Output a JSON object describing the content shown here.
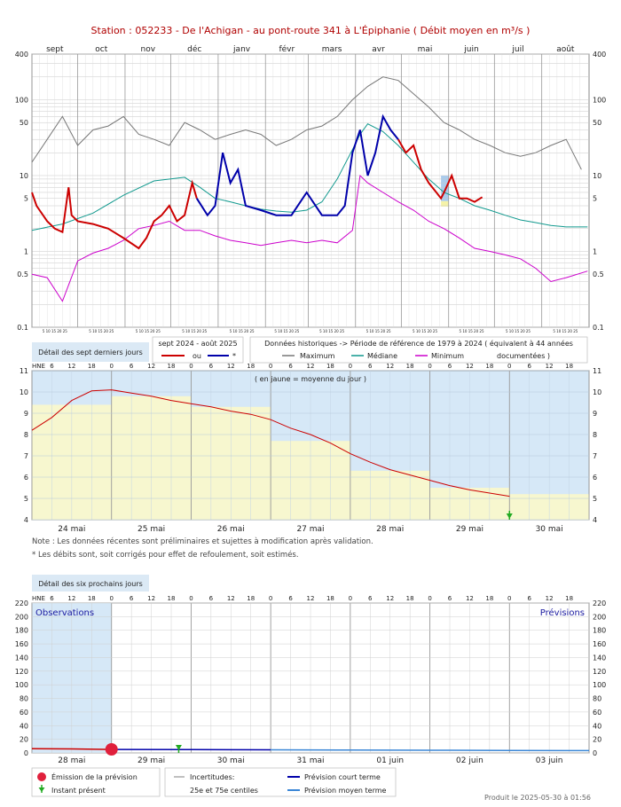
{
  "title": "Station : 052233      -   De l'Achigan - au pont-route 341 à L'Épiphanie   ( Débit moyen en m³/s )",
  "notes": {
    "line1": "Note : Les données récentes sont préliminaires et sujettes à modification après validation.",
    "line2": "* Les débits sont, soit corrigés pour effet de refoulement, soit estimés."
  },
  "produced": "Produit le 2025-05-30 à 01:56",
  "colors": {
    "corrected": "#cc0000",
    "estimated": "#0000aa",
    "maximum": "#777777",
    "median": "#11998e",
    "minimum": "#cc00cc",
    "recent_blue": "#aaccee",
    "daily_yellow": "#f7f7cf",
    "panel_blue": "#d6e8f7",
    "emission": "#e0203c",
    "present": "#22aa22"
  },
  "chart_data": [
    {
      "type": "line",
      "title": "",
      "scale": "log",
      "ylim": [
        0.1,
        400
      ],
      "y_ticks": [
        "0.1",
        "0.5",
        "1",
        "5",
        "10",
        "50",
        "100",
        "400"
      ],
      "months": [
        "sept",
        "oct",
        "nov",
        "déc",
        "janv",
        "févr",
        "mars",
        "avr",
        "mai",
        "juin",
        "juil",
        "août"
      ],
      "day_ticks_label": "5 10 15 20 25",
      "legend": {
        "detail_button": "Détail des sept derniers jours",
        "period_label": "sept 2024 - août 2025",
        "corrected_label": "ou",
        "estimated_label": "*",
        "historic_label": "Données historiques -> Période de référence  de 1979 à 2024   ( équivalent à 44 années",
        "maximum_label": "Maximum",
        "median_label": "Médiane",
        "minimum_label": "Minimum",
        "documented_label": "documentées )"
      },
      "series": [
        {
          "name": "Maximum",
          "days": [
            0,
            10,
            20,
            30,
            40,
            50,
            60,
            70,
            80,
            90,
            100,
            110,
            120,
            130,
            140,
            150,
            160,
            170,
            180,
            190,
            200,
            210,
            220,
            230,
            240,
            250,
            260,
            270,
            280,
            290,
            300,
            310,
            320,
            330,
            340,
            350,
            360
          ],
          "values": [
            15,
            30,
            60,
            25,
            40,
            45,
            60,
            35,
            30,
            25,
            50,
            40,
            30,
            35,
            40,
            35,
            25,
            30,
            40,
            45,
            60,
            100,
            150,
            200,
            180,
            120,
            80,
            50,
            40,
            30,
            25,
            20,
            18,
            20,
            25,
            30,
            12
          ]
        },
        {
          "name": "Médiane",
          "days": [
            0,
            20,
            40,
            60,
            80,
            100,
            110,
            120,
            130,
            140,
            150,
            160,
            170,
            180,
            190,
            200,
            210,
            215,
            220,
            230,
            240,
            250,
            260,
            270,
            280,
            290,
            300,
            310,
            320,
            330,
            340,
            350,
            364
          ],
          "values": [
            1.9,
            2.3,
            3.2,
            5.5,
            8.5,
            9.5,
            7,
            5,
            4.5,
            4,
            3.6,
            3.4,
            3.3,
            3.5,
            4.5,
            9,
            22,
            35,
            48,
            38,
            25,
            15,
            9,
            6,
            5,
            4,
            3.5,
            3,
            2.6,
            2.4,
            2.2,
            2.1,
            2.1
          ]
        },
        {
          "name": "Minimum",
          "days": [
            0,
            10,
            20,
            30,
            40,
            50,
            60,
            70,
            80,
            90,
            100,
            110,
            120,
            130,
            140,
            150,
            160,
            170,
            180,
            190,
            200,
            210,
            215,
            220,
            230,
            240,
            250,
            260,
            270,
            280,
            290,
            300,
            310,
            320,
            330,
            340,
            350,
            364
          ],
          "values": [
            0.5,
            0.45,
            0.22,
            0.75,
            0.95,
            1.1,
            1.4,
            2.0,
            2.2,
            2.5,
            1.9,
            1.9,
            1.6,
            1.4,
            1.3,
            1.2,
            1.3,
            1.4,
            1.3,
            1.4,
            1.3,
            1.9,
            10,
            8,
            6,
            4.5,
            3.5,
            2.5,
            2,
            1.5,
            1.1,
            1.0,
            0.9,
            0.8,
            0.6,
            0.4,
            0.45,
            0.55
          ]
        },
        {
          "name": "Débit 2024-2025",
          "segments": [
            {
              "kind": "corrected",
              "days": [
                0,
                3,
                5,
                10,
                15,
                20,
                24,
                26,
                30,
                40,
                50,
                60,
                70,
                75,
                80,
                85,
                90,
                95,
                100,
                105,
                108
              ],
              "values": [
                6,
                4,
                3.5,
                2.5,
                2,
                1.8,
                7,
                3,
                2.5,
                2.3,
                2,
                1.5,
                1.1,
                1.5,
                2.5,
                3,
                4,
                2.5,
                3,
                8,
                5
              ]
            },
            {
              "kind": "estimated",
              "days": [
                108,
                115,
                120,
                125,
                130,
                135,
                140,
                150,
                160,
                170,
                180,
                190,
                200,
                205,
                210,
                215,
                220,
                225,
                230,
                235,
                240
              ],
              "values": [
                5,
                3,
                4,
                20,
                8,
                12,
                4,
                3.5,
                3,
                3,
                6,
                3,
                3,
                4,
                20,
                40,
                10,
                20,
                60,
                40,
                30
              ]
            },
            {
              "kind": "corrected",
              "days": [
                240,
                245,
                250,
                255,
                260,
                265,
                268,
                270,
                275,
                280,
                285,
                290,
                295
              ],
              "values": [
                30,
                20,
                25,
                12,
                8,
                6,
                5,
                6,
                10,
                5,
                5,
                4.5,
                5.2
              ]
            }
          ]
        }
      ]
    },
    {
      "type": "line",
      "title": "Détail des sept derniers jours",
      "hne_label": "HNE",
      "caption": "( en jaune = moyenne du jour )",
      "ylim": [
        4,
        11
      ],
      "y_ticks": [
        "4",
        "5",
        "6",
        "7",
        "8",
        "9",
        "10",
        "11"
      ],
      "days": [
        "24 mai",
        "25 mai",
        "26 mai",
        "27 mai",
        "28 mai",
        "29 mai",
        "30 mai"
      ],
      "hour_ticks": [
        "0",
        "6",
        "12",
        "18"
      ],
      "daily_means": [
        9.4,
        9.8,
        9.3,
        7.7,
        6.3,
        5.5,
        5.2
      ],
      "series": [
        {
          "name": "Débit",
          "x_hours": [
            0,
            6,
            12,
            18,
            24,
            30,
            36,
            42,
            48,
            54,
            60,
            66,
            72,
            78,
            84,
            90,
            96,
            102,
            108,
            114,
            120,
            126,
            132,
            138,
            144
          ],
          "values": [
            8.2,
            8.8,
            9.6,
            10.05,
            10.1,
            9.95,
            9.8,
            9.6,
            9.45,
            9.3,
            9.1,
            8.95,
            8.7,
            8.3,
            8.0,
            7.6,
            7.1,
            6.7,
            6.35,
            6.1,
            5.85,
            5.6,
            5.4,
            5.25,
            5.1
          ]
        }
      ],
      "present_hour": 144
    },
    {
      "type": "line",
      "title": "Détail des six prochains jours",
      "hne_label": "HNE",
      "observations_label": "Observations",
      "forecasts_label": "Prévisions",
      "ylim": [
        0,
        220
      ],
      "y_ticks": [
        "0",
        "20",
        "40",
        "60",
        "80",
        "100",
        "120",
        "140",
        "160",
        "180",
        "200",
        "220"
      ],
      "days": [
        "28 mai",
        "29 mai",
        "30 mai",
        "31 mai",
        "01 juin",
        "02 juin",
        "03 juin"
      ],
      "hour_ticks": [
        "0",
        "6",
        "12",
        "18"
      ],
      "legend": {
        "emission": "Émission de la prévision",
        "present": "Instant présent",
        "uncertainty": "Incertitudes:",
        "centiles": "25e et 75e centiles",
        "short_term": "Prévision court terme",
        "mid_term": "Prévision moyen terme"
      },
      "series": [
        {
          "name": "Observations",
          "x_hours": [
            0,
            12,
            24
          ],
          "values": [
            6.3,
            5.8,
            5.1
          ]
        },
        {
          "name": "Prévision court terme",
          "x_hours": [
            24,
            48,
            72
          ],
          "values": [
            5.1,
            4.8,
            4.5
          ]
        },
        {
          "name": "Prévision moyen terme",
          "x_hours": [
            72,
            96,
            120,
            144,
            168
          ],
          "values": [
            4.5,
            4.2,
            3.9,
            3.6,
            3.4
          ]
        }
      ],
      "emission_hour": 24,
      "present_hour": 25
    }
  ]
}
